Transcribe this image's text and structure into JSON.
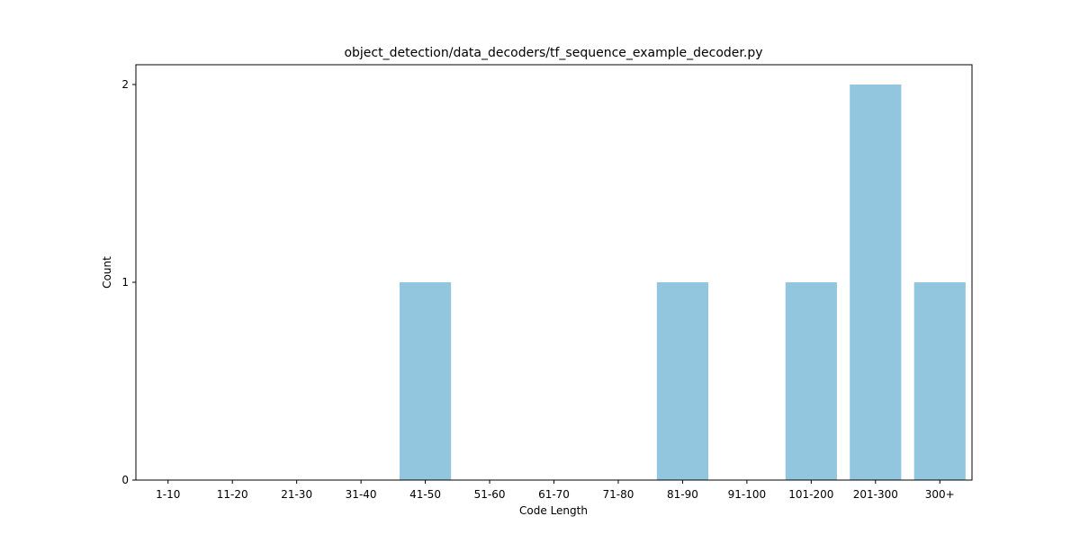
{
  "chart_data": {
    "type": "bar",
    "title": "object_detection/data_decoders/tf_sequence_example_decoder.py",
    "xlabel": "Code Length",
    "ylabel": "Count",
    "categories": [
      "1-10",
      "11-20",
      "21-30",
      "31-40",
      "41-50",
      "51-60",
      "61-70",
      "71-80",
      "81-90",
      "91-100",
      "101-200",
      "201-300",
      "300+"
    ],
    "values": [
      0,
      0,
      0,
      0,
      1,
      0,
      0,
      0,
      1,
      0,
      1,
      2,
      1
    ],
    "ylim": [
      0,
      2.1
    ],
    "yticks": [
      0,
      1,
      2
    ],
    "grid": false,
    "bar_color": "#92c5de"
  }
}
